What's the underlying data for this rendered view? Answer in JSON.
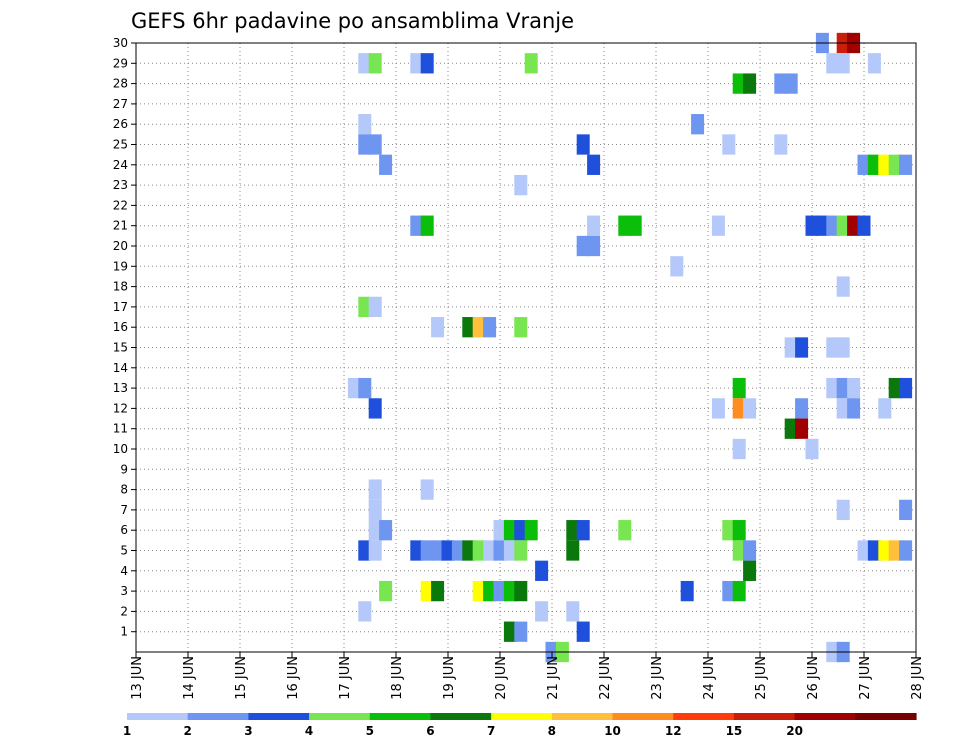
{
  "chart_data": {
    "type": "heatmap",
    "title": "GEFS 6hr padavine po ansamblima Vranje",
    "xlabel": "",
    "ylabel": "",
    "x_tick_labels": [
      "13 JUN",
      "14 JUN",
      "15 JUN",
      "16 JUN",
      "17 JUN",
      "18 JUN",
      "19 JUN",
      "20 JUN",
      "21 JUN",
      "22 JUN",
      "23 JUN",
      "24 JUN",
      "25 JUN",
      "26 JUN",
      "27 JUN",
      "28 JUN"
    ],
    "x_range_days": [
      13,
      28
    ],
    "steps_per_day": 4,
    "y_tick_labels": [
      "1",
      "2",
      "3",
      "4",
      "5",
      "6",
      "7",
      "8",
      "9",
      "10",
      "11",
      "12",
      "13",
      "14",
      "15",
      "16",
      "17",
      "18",
      "19",
      "20",
      "21",
      "22",
      "23",
      "24",
      "25",
      "26",
      "27",
      "28",
      "29",
      "30"
    ],
    "y_range": [
      0,
      30
    ],
    "grid": true,
    "colorbar": {
      "levels": [
        "1",
        "2",
        "3",
        "4",
        "5",
        "6",
        "7",
        "8",
        "10",
        "12",
        "15",
        "20"
      ],
      "colors": [
        "#b4c8fa",
        "#6e96f0",
        "#1e50dc",
        "#78e650",
        "#0abe0a",
        "#0a780a",
        "#ffff00",
        "#ffbe3c",
        "#ff8c1e",
        "#ff3c0a",
        "#c81e0a",
        "#a00000",
        "#780000"
      ]
    },
    "cells": [
      {
        "member": 30,
        "x": 26.2,
        "bin": 1
      },
      {
        "member": 30,
        "x": 26.6,
        "bin": 10
      },
      {
        "member": 30,
        "x": 26.8,
        "bin": 11
      },
      {
        "member": 29,
        "x": 17.4,
        "bin": 0
      },
      {
        "member": 29,
        "x": 17.6,
        "bin": 3
      },
      {
        "member": 29,
        "x": 18.4,
        "bin": 0
      },
      {
        "member": 29,
        "x": 18.6,
        "bin": 2
      },
      {
        "member": 29,
        "x": 20.6,
        "bin": 3
      },
      {
        "member": 29,
        "x": 26.4,
        "bin": 0
      },
      {
        "member": 29,
        "x": 26.6,
        "bin": 0
      },
      {
        "member": 29,
        "x": 27.2,
        "bin": 0
      },
      {
        "member": 28,
        "x": 24.6,
        "bin": 4
      },
      {
        "member": 28,
        "x": 24.8,
        "bin": 5
      },
      {
        "member": 28,
        "x": 25.4,
        "bin": 1
      },
      {
        "member": 28,
        "x": 25.6,
        "bin": 1
      },
      {
        "member": 26,
        "x": 17.4,
        "bin": 0
      },
      {
        "member": 26,
        "x": 23.8,
        "bin": 1
      },
      {
        "member": 25,
        "x": 17.4,
        "bin": 1
      },
      {
        "member": 25,
        "x": 17.6,
        "bin": 1
      },
      {
        "member": 25,
        "x": 21.6,
        "bin": 2
      },
      {
        "member": 25,
        "x": 24.4,
        "bin": 0
      },
      {
        "member": 25,
        "x": 25.4,
        "bin": 0
      },
      {
        "member": 24,
        "x": 17.8,
        "bin": 1
      },
      {
        "member": 24,
        "x": 21.8,
        "bin": 2
      },
      {
        "member": 24,
        "x": 27.0,
        "bin": 1
      },
      {
        "member": 24,
        "x": 27.2,
        "bin": 4
      },
      {
        "member": 24,
        "x": 27.4,
        "bin": 6
      },
      {
        "member": 24,
        "x": 27.6,
        "bin": 3
      },
      {
        "member": 24,
        "x": 27.8,
        "bin": 1
      },
      {
        "member": 23,
        "x": 20.4,
        "bin": 0
      },
      {
        "member": 21,
        "x": 18.4,
        "bin": 1
      },
      {
        "member": 21,
        "x": 18.6,
        "bin": 4
      },
      {
        "member": 21,
        "x": 21.8,
        "bin": 0
      },
      {
        "member": 21,
        "x": 22.4,
        "bin": 4
      },
      {
        "member": 21,
        "x": 22.6,
        "bin": 4
      },
      {
        "member": 21,
        "x": 24.2,
        "bin": 0
      },
      {
        "member": 21,
        "x": 26.0,
        "bin": 2
      },
      {
        "member": 21,
        "x": 26.2,
        "bin": 2
      },
      {
        "member": 21,
        "x": 26.4,
        "bin": 1
      },
      {
        "member": 21,
        "x": 26.6,
        "bin": 3
      },
      {
        "member": 21,
        "x": 26.8,
        "bin": 11
      },
      {
        "member": 21,
        "x": 27.0,
        "bin": 2
      },
      {
        "member": 20,
        "x": 21.6,
        "bin": 1
      },
      {
        "member": 20,
        "x": 21.8,
        "bin": 1
      },
      {
        "member": 19,
        "x": 23.4,
        "bin": 0
      },
      {
        "member": 18,
        "x": 26.6,
        "bin": 0
      },
      {
        "member": 17,
        "x": 17.4,
        "bin": 3
      },
      {
        "member": 17,
        "x": 17.6,
        "bin": 0
      },
      {
        "member": 16,
        "x": 18.8,
        "bin": 0
      },
      {
        "member": 16,
        "x": 19.4,
        "bin": 5
      },
      {
        "member": 16,
        "x": 19.6,
        "bin": 7
      },
      {
        "member": 16,
        "x": 19.8,
        "bin": 1
      },
      {
        "member": 16,
        "x": 20.4,
        "bin": 3
      },
      {
        "member": 15,
        "x": 25.6,
        "bin": 0
      },
      {
        "member": 15,
        "x": 25.8,
        "bin": 2
      },
      {
        "member": 15,
        "x": 26.4,
        "bin": 0
      },
      {
        "member": 15,
        "x": 26.6,
        "bin": 0
      },
      {
        "member": 13,
        "x": 17.2,
        "bin": 0
      },
      {
        "member": 13,
        "x": 17.4,
        "bin": 1
      },
      {
        "member": 13,
        "x": 24.6,
        "bin": 4
      },
      {
        "member": 13,
        "x": 26.4,
        "bin": 0
      },
      {
        "member": 13,
        "x": 26.6,
        "bin": 1
      },
      {
        "member": 13,
        "x": 26.8,
        "bin": 0
      },
      {
        "member": 13,
        "x": 27.6,
        "bin": 5
      },
      {
        "member": 13,
        "x": 27.8,
        "bin": 2
      },
      {
        "member": 12,
        "x": 17.6,
        "bin": 2
      },
      {
        "member": 12,
        "x": 24.2,
        "bin": 0
      },
      {
        "member": 12,
        "x": 24.6,
        "bin": 8
      },
      {
        "member": 12,
        "x": 24.8,
        "bin": 0
      },
      {
        "member": 12,
        "x": 25.8,
        "bin": 1
      },
      {
        "member": 12,
        "x": 26.6,
        "bin": 0
      },
      {
        "member": 12,
        "x": 26.8,
        "bin": 1
      },
      {
        "member": 12,
        "x": 27.4,
        "bin": 0
      },
      {
        "member": 11,
        "x": 25.6,
        "bin": 5
      },
      {
        "member": 11,
        "x": 25.8,
        "bin": 11
      },
      {
        "member": 10,
        "x": 24.6,
        "bin": 0
      },
      {
        "member": 10,
        "x": 26.0,
        "bin": 0
      },
      {
        "member": 8,
        "x": 17.6,
        "bin": 0
      },
      {
        "member": 8,
        "x": 18.6,
        "bin": 0
      },
      {
        "member": 7,
        "x": 17.6,
        "bin": 0
      },
      {
        "member": 7,
        "x": 26.6,
        "bin": 0
      },
      {
        "member": 7,
        "x": 27.8,
        "bin": 1
      },
      {
        "member": 6,
        "x": 17.6,
        "bin": 0
      },
      {
        "member": 6,
        "x": 17.8,
        "bin": 1
      },
      {
        "member": 6,
        "x": 20.0,
        "bin": 0
      },
      {
        "member": 6,
        "x": 20.2,
        "bin": 4
      },
      {
        "member": 6,
        "x": 20.4,
        "bin": 2
      },
      {
        "member": 6,
        "x": 20.6,
        "bin": 4
      },
      {
        "member": 6,
        "x": 21.4,
        "bin": 5
      },
      {
        "member": 6,
        "x": 21.6,
        "bin": 2
      },
      {
        "member": 6,
        "x": 22.4,
        "bin": 3
      },
      {
        "member": 6,
        "x": 24.4,
        "bin": 3
      },
      {
        "member": 6,
        "x": 24.6,
        "bin": 4
      },
      {
        "member": 5,
        "x": 17.4,
        "bin": 2
      },
      {
        "member": 5,
        "x": 17.6,
        "bin": 0
      },
      {
        "member": 5,
        "x": 18.4,
        "bin": 2
      },
      {
        "member": 5,
        "x": 18.6,
        "bin": 1
      },
      {
        "member": 5,
        "x": 18.8,
        "bin": 1
      },
      {
        "member": 5,
        "x": 19.0,
        "bin": 2
      },
      {
        "member": 5,
        "x": 19.2,
        "bin": 1
      },
      {
        "member": 5,
        "x": 19.4,
        "bin": 5
      },
      {
        "member": 5,
        "x": 19.6,
        "bin": 3
      },
      {
        "member": 5,
        "x": 19.8,
        "bin": 0
      },
      {
        "member": 5,
        "x": 20.0,
        "bin": 1
      },
      {
        "member": 5,
        "x": 20.2,
        "bin": 0
      },
      {
        "member": 5,
        "x": 20.4,
        "bin": 3
      },
      {
        "member": 5,
        "x": 21.4,
        "bin": 5
      },
      {
        "member": 5,
        "x": 24.6,
        "bin": 3
      },
      {
        "member": 5,
        "x": 24.8,
        "bin": 1
      },
      {
        "member": 5,
        "x": 27.0,
        "bin": 0
      },
      {
        "member": 5,
        "x": 27.2,
        "bin": 2
      },
      {
        "member": 5,
        "x": 27.4,
        "bin": 6
      },
      {
        "member": 5,
        "x": 27.6,
        "bin": 7
      },
      {
        "member": 5,
        "x": 27.8,
        "bin": 1
      },
      {
        "member": 4,
        "x": 20.8,
        "bin": 2
      },
      {
        "member": 4,
        "x": 24.8,
        "bin": 5
      },
      {
        "member": 3,
        "x": 17.8,
        "bin": 3
      },
      {
        "member": 3,
        "x": 18.6,
        "bin": 6
      },
      {
        "member": 3,
        "x": 18.8,
        "bin": 5
      },
      {
        "member": 3,
        "x": 19.6,
        "bin": 6
      },
      {
        "member": 3,
        "x": 19.8,
        "bin": 4
      },
      {
        "member": 3,
        "x": 20.0,
        "bin": 1
      },
      {
        "member": 3,
        "x": 20.2,
        "bin": 4
      },
      {
        "member": 3,
        "x": 20.4,
        "bin": 5
      },
      {
        "member": 3,
        "x": 23.6,
        "bin": 2
      },
      {
        "member": 3,
        "x": 24.4,
        "bin": 1
      },
      {
        "member": 3,
        "x": 24.6,
        "bin": 4
      },
      {
        "member": 2,
        "x": 17.4,
        "bin": 0
      },
      {
        "member": 2,
        "x": 20.8,
        "bin": 0
      },
      {
        "member": 2,
        "x": 21.4,
        "bin": 0
      },
      {
        "member": 1,
        "x": 20.2,
        "bin": 5
      },
      {
        "member": 1,
        "x": 20.4,
        "bin": 1
      },
      {
        "member": 1,
        "x": 21.6,
        "bin": 2
      },
      {
        "member": 0,
        "x": 21.0,
        "bin": 1
      },
      {
        "member": 0,
        "x": 21.2,
        "bin": 3
      },
      {
        "member": 0,
        "x": 26.4,
        "bin": 0
      },
      {
        "member": 0,
        "x": 26.6,
        "bin": 1
      }
    ]
  }
}
